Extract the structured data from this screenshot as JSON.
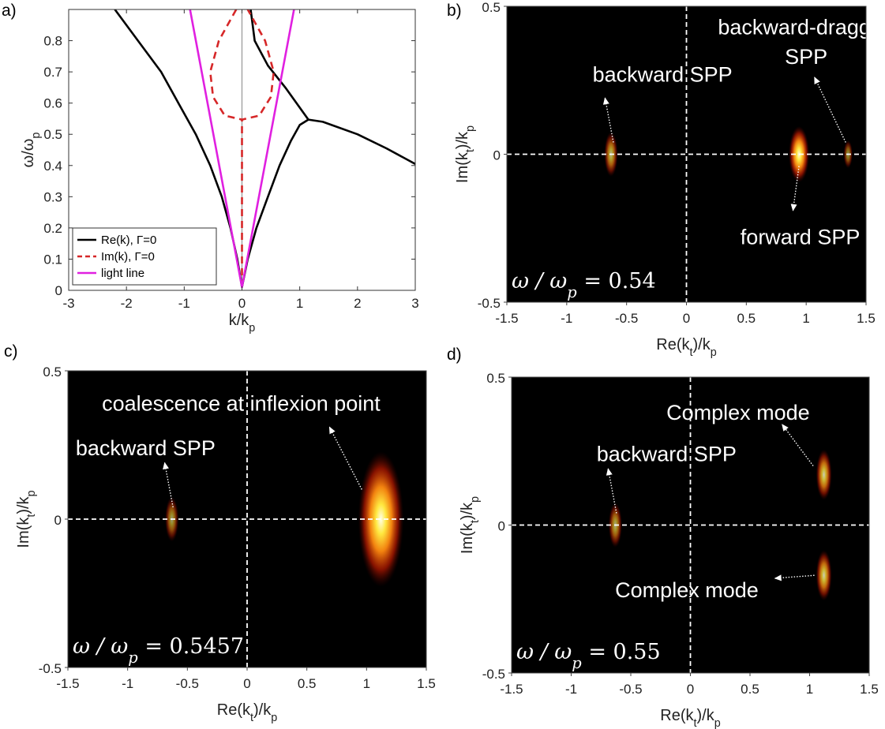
{
  "chart_data": [
    {
      "panel": "a)",
      "type": "line",
      "xlabel": "k/k_p",
      "ylabel": "ω/ω_p",
      "xlim": [
        -3,
        3
      ],
      "ylim": [
        0,
        0.9
      ],
      "xticks": [
        -3,
        -2,
        -1,
        0,
        1,
        2,
        3
      ],
      "yticks": [
        0,
        0.1,
        0.2,
        0.3,
        0.4,
        0.5,
        0.6,
        0.7,
        0.8
      ],
      "legend_position": "bottom-left",
      "series": [
        {
          "name": "Re(k), Γ=0",
          "color": "#000000",
          "style": "solid",
          "segments": [
            [
              [
                -2.2,
                0.9
              ],
              [
                -1.8,
                0.8
              ],
              [
                -1.4,
                0.7
              ],
              [
                -1.1,
                0.6
              ],
              [
                -0.8,
                0.5
              ],
              [
                -0.55,
                0.4
              ],
              [
                -0.35,
                0.3
              ],
              [
                -0.2,
                0.2
              ],
              [
                -0.08,
                0.1
              ],
              [
                0,
                0.01
              ]
            ],
            [
              [
                0,
                0.01
              ],
              [
                0.1,
                0.1
              ],
              [
                0.25,
                0.2
              ],
              [
                0.45,
                0.3
              ],
              [
                0.65,
                0.4
              ],
              [
                0.85,
                0.48
              ],
              [
                1.0,
                0.53
              ],
              [
                1.15,
                0.547
              ],
              [
                1.4,
                0.54
              ],
              [
                2.0,
                0.5
              ],
              [
                2.5,
                0.455
              ],
              [
                3.0,
                0.405
              ]
            ],
            [
              [
                0.15,
                0.9
              ],
              [
                0.22,
                0.8
              ],
              [
                0.45,
                0.72
              ],
              [
                0.75,
                0.65
              ],
              [
                1.15,
                0.547
              ]
            ]
          ]
        },
        {
          "name": "Im(k), Γ=0",
          "color": "#d62728",
          "style": "dashed",
          "segments": [
            [
              [
                0,
                0.01
              ],
              [
                0,
                0.547
              ]
            ],
            [
              [
                -0.1,
                0.9
              ],
              [
                -0.4,
                0.8
              ],
              [
                -0.55,
                0.7
              ],
              [
                -0.5,
                0.62
              ],
              [
                -0.3,
                0.56
              ],
              [
                0,
                0.547
              ],
              [
                0.3,
                0.56
              ],
              [
                0.5,
                0.62
              ],
              [
                0.55,
                0.7
              ],
              [
                0.4,
                0.8
              ],
              [
                0.1,
                0.9
              ]
            ]
          ]
        },
        {
          "name": "light line",
          "color": "#e020e0",
          "style": "solid",
          "segments": [
            [
              [
                -0.9,
                0.9
              ],
              [
                0,
                0.01
              ],
              [
                0.9,
                0.9
              ]
            ]
          ]
        }
      ]
    },
    {
      "panel": "b)",
      "type": "heatmap",
      "xlabel": "Re(k_t)/k_p",
      "ylabel": "Im(k_t)/k_p",
      "xlim": [
        -1.5,
        1.5
      ],
      "ylim": [
        -0.5,
        0.5
      ],
      "xticks": [
        -1.5,
        -1,
        -0.5,
        0,
        0.5,
        1,
        1.5
      ],
      "yticks": [
        -0.5,
        0,
        0.5
      ],
      "freq_label": "ω / ω_p = 0.54",
      "spots": [
        {
          "x": -0.63,
          "y": 0,
          "rx": 0.03,
          "ry": 0.04,
          "intensity": 0.7
        },
        {
          "x": 0.94,
          "y": 0,
          "rx": 0.045,
          "ry": 0.05,
          "intensity": 1.0
        },
        {
          "x": 1.35,
          "y": 0,
          "rx": 0.02,
          "ry": 0.025,
          "intensity": 0.55
        }
      ],
      "annotations": [
        {
          "text": "backward SPP",
          "x": -0.2,
          "y": 0.27
        },
        {
          "text": "backward-dragged",
          "x": 1.0,
          "y": 0.43
        },
        {
          "text": "SPP",
          "x": 1.0,
          "y": 0.33
        },
        {
          "text": "forward SPP",
          "x": 0.95,
          "y": -0.28
        }
      ],
      "arrows": [
        {
          "from": [
            -0.61,
            0.04
          ],
          "to": [
            -0.68,
            0.19
          ]
        },
        {
          "from": [
            1.33,
            0.04
          ],
          "to": [
            1.07,
            0.26
          ]
        },
        {
          "from": [
            0.94,
            -0.04
          ],
          "to": [
            0.89,
            -0.19
          ]
        }
      ]
    },
    {
      "panel": "c)",
      "type": "heatmap",
      "xlabel": "Re(k_t)/k_p",
      "ylabel": "Im(k_t)/k_p",
      "xlim": [
        -1.5,
        1.5
      ],
      "ylim": [
        -0.5,
        0.5
      ],
      "xticks": [
        -1.5,
        -1,
        -0.5,
        0,
        0.5,
        1,
        1.5
      ],
      "yticks": [
        -0.5,
        0,
        0.5
      ],
      "freq_label": "ω / ω_p = 0.5457",
      "spots": [
        {
          "x": -0.63,
          "y": 0,
          "rx": 0.03,
          "ry": 0.04,
          "intensity": 0.6
        },
        {
          "x": 1.12,
          "y": 0,
          "rx": 0.1,
          "ry": 0.12,
          "intensity": 1.0
        }
      ],
      "annotations": [
        {
          "text": "coalescence at inflexion point",
          "x": -0.05,
          "y": 0.39
        },
        {
          "text": "backward SPP",
          "x": -0.85,
          "y": 0.24
        }
      ],
      "arrows": [
        {
          "from": [
            -0.62,
            0.04
          ],
          "to": [
            -0.69,
            0.19
          ]
        },
        {
          "from": [
            0.96,
            0.1
          ],
          "to": [
            0.69,
            0.31
          ]
        }
      ]
    },
    {
      "panel": "d)",
      "type": "heatmap",
      "xlabel": "Re(k_t)/k_p",
      "ylabel": "Im(k_t)/k_p",
      "xlim": [
        -1.5,
        1.5
      ],
      "ylim": [
        -0.5,
        0.5
      ],
      "xticks": [
        -1.5,
        -1,
        -0.5,
        0,
        0.5,
        1,
        1.5
      ],
      "yticks": [
        -0.5,
        0,
        0.5
      ],
      "freq_label": "ω / ω_p = 0.55",
      "spots": [
        {
          "x": -0.63,
          "y": 0,
          "rx": 0.03,
          "ry": 0.04,
          "intensity": 0.65
        },
        {
          "x": 1.12,
          "y": 0.17,
          "rx": 0.035,
          "ry": 0.045,
          "intensity": 0.8
        },
        {
          "x": 1.12,
          "y": -0.17,
          "rx": 0.035,
          "ry": 0.045,
          "intensity": 0.8
        }
      ],
      "annotations": [
        {
          "text": "Complex mode",
          "x": 0.4,
          "y": 0.38
        },
        {
          "text": "backward SPP",
          "x": -0.2,
          "y": 0.24
        },
        {
          "text": "Complex mode",
          "x": -0.03,
          "y": -0.22
        }
      ],
      "arrows": [
        {
          "from": [
            -0.62,
            0.04
          ],
          "to": [
            -0.69,
            0.19
          ]
        },
        {
          "from": [
            1.03,
            0.2
          ],
          "to": [
            0.77,
            0.34
          ]
        },
        {
          "from": [
            1.04,
            -0.17
          ],
          "to": [
            0.71,
            -0.18
          ]
        }
      ]
    }
  ]
}
